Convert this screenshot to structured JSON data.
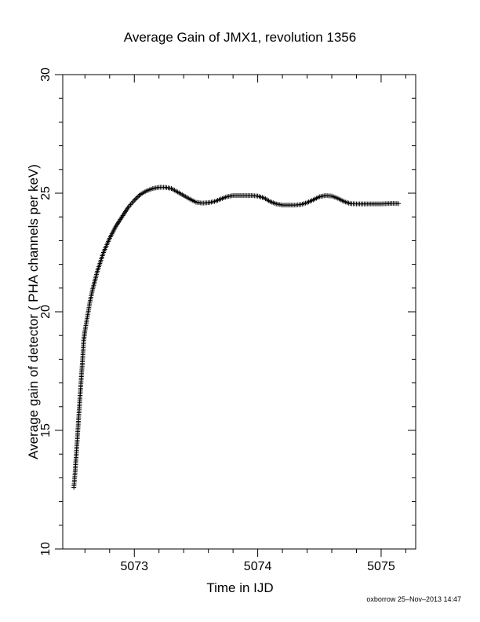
{
  "chart_data": {
    "type": "scatter",
    "title": "Average Gain of JMX1, revolution 1356",
    "xlabel": "Time in IJD",
    "ylabel": "Average gain of detector ( PHA channels per keV)",
    "xlim": [
      5072.42,
      5075.28
    ],
    "ylim": [
      10,
      30
    ],
    "x_ticks": [
      5073,
      5074,
      5075
    ],
    "y_ticks": [
      10,
      15,
      20,
      25,
      30
    ],
    "marker": "plus",
    "grid": false,
    "legend": "none",
    "series": [
      {
        "x": [
          5072.51,
          5072.52,
          5072.53,
          5072.54,
          5072.55,
          5072.56,
          5072.57,
          5072.58,
          5072.59,
          5072.6,
          5072.62,
          5072.64,
          5072.66,
          5072.68,
          5072.7,
          5072.75,
          5072.8,
          5072.85,
          5072.9,
          5072.95,
          5073.0,
          5073.05,
          5073.1,
          5073.15,
          5073.2,
          5073.25,
          5073.3,
          5073.35,
          5073.4,
          5073.45,
          5073.5,
          5073.55,
          5073.6,
          5073.65,
          5073.7,
          5073.75,
          5073.8,
          5073.85,
          5073.9,
          5073.95,
          5074.0,
          5074.05,
          5074.1,
          5074.15,
          5074.2,
          5074.25,
          5074.3,
          5074.35,
          5074.4,
          5074.45,
          5074.5,
          5074.55,
          5074.6,
          5074.65,
          5074.7,
          5074.75,
          5074.8,
          5074.85,
          5074.9,
          5074.95,
          5075.0,
          5075.05,
          5075.1,
          5075.14
        ],
        "y": [
          12.6,
          13.2,
          14.0,
          14.8,
          15.6,
          16.4,
          17.2,
          17.9,
          18.8,
          19.2,
          19.8,
          20.4,
          20.9,
          21.3,
          21.7,
          22.5,
          23.1,
          23.6,
          24.0,
          24.4,
          24.7,
          24.95,
          25.1,
          25.2,
          25.25,
          25.25,
          25.2,
          25.05,
          24.9,
          24.75,
          24.62,
          24.58,
          24.6,
          24.65,
          24.75,
          24.85,
          24.9,
          24.9,
          24.9,
          24.9,
          24.88,
          24.8,
          24.65,
          24.55,
          24.5,
          24.5,
          24.5,
          24.52,
          24.6,
          24.72,
          24.85,
          24.9,
          24.88,
          24.78,
          24.65,
          24.56,
          24.55,
          24.55,
          24.55,
          24.55,
          24.55,
          24.56,
          24.57,
          24.56
        ]
      }
    ]
  },
  "footer": "oxborrow 25–Nov–2013 14:47"
}
